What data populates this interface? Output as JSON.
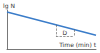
{
  "chart_data": {
    "type": "line",
    "x_label": "Time (min) t",
    "y_label": "lg N",
    "x": [
      0,
      10
    ],
    "values": [
      9.5,
      3.5
    ],
    "color": "#3a7cc9",
    "xlim": [
      0,
      10
    ],
    "ylim": [
      0,
      10
    ],
    "xticks": [],
    "yticks": [],
    "tick_labels": false,
    "grid": false,
    "annotations": [
      {
        "text": "D",
        "x": [
          5.5,
          7.5
        ],
        "y": 3.2
      }
    ]
  }
}
